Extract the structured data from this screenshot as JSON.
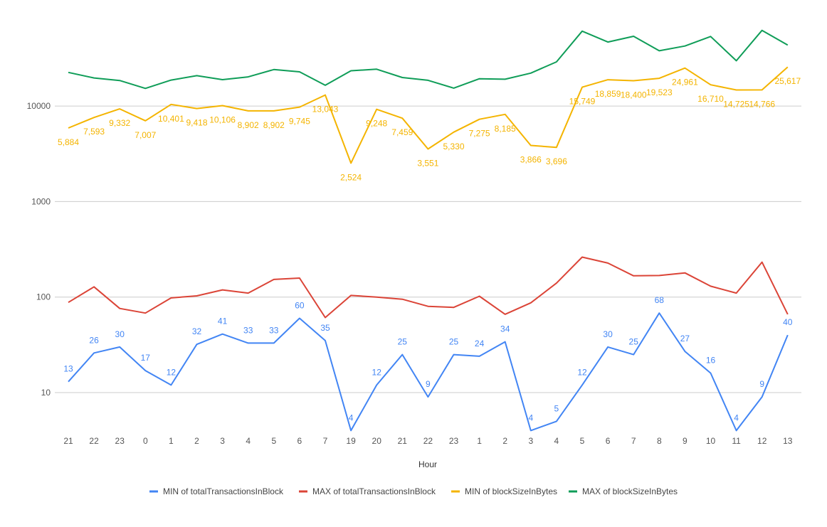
{
  "chart_data": {
    "type": "line",
    "title": "",
    "xlabel": "Hour",
    "ylabel": "",
    "y_scale": "log",
    "ylim": [
      4,
      70000
    ],
    "y_ticks": [
      "10",
      "100",
      "1000",
      "10000"
    ],
    "grid": true,
    "legend_position": "bottom",
    "categories": [
      "21",
      "22",
      "23",
      "0",
      "1",
      "2",
      "3",
      "4",
      "5",
      "6",
      "7",
      "19",
      "20",
      "21",
      "22",
      "23",
      "1",
      "2",
      "3",
      "4",
      "5",
      "6",
      "7",
      "8",
      "9",
      "10",
      "11",
      "12",
      "13"
    ],
    "series": [
      {
        "name": "MIN of totalTransactionsInBlock",
        "color": "#4285f4",
        "values": [
          13,
          26,
          30,
          17,
          12,
          32,
          41,
          33,
          33,
          60,
          35,
          4,
          12,
          25,
          9,
          25,
          24,
          34,
          4,
          5,
          12,
          30,
          25,
          68,
          27,
          16,
          4,
          9,
          40
        ],
        "data_labels": [
          "13",
          "26",
          "30",
          "17",
          "12",
          "32",
          "41",
          "33",
          "33",
          "60",
          "35",
          "4",
          "12",
          "25",
          "9",
          "25",
          "24",
          "34",
          "4",
          "5",
          "12",
          "30",
          "25",
          "68",
          "27",
          "16",
          "4",
          "9",
          "40"
        ]
      },
      {
        "name": "MAX of totalTransactionsInBlock",
        "color": "#db4437",
        "values": [
          88,
          128,
          76,
          68,
          98,
          103,
          119,
          110,
          153,
          158,
          61,
          104,
          100,
          95,
          80,
          78,
          102,
          66,
          87,
          140,
          262,
          227,
          167,
          168,
          179,
          130,
          110,
          232,
          66
        ]
      },
      {
        "name": "MIN of blockSizeInBytes",
        "color": "#f4b400",
        "values": [
          5884,
          7593,
          9332,
          7007,
          10401,
          9418,
          10106,
          8902,
          8902,
          9745,
          13043,
          2524,
          9248,
          7459,
          3551,
          5330,
          7275,
          8185,
          3866,
          3696,
          15749,
          18859,
          18400,
          19523,
          24961,
          16710,
          14725,
          14766,
          25617
        ],
        "data_labels": [
          "5,884",
          "7,593",
          "9,332",
          "7,007",
          "10,401",
          "9,418",
          "10,106",
          "8,902",
          "8,902",
          "9,745",
          "13,043",
          "2,524",
          "9,248",
          "7,459",
          "3,551",
          "5,330",
          "7,275",
          "8,185",
          "3,866",
          "3,696",
          "15,749",
          "18,859",
          "18,400",
          "19,523",
          "24,961",
          "16,710",
          "14,725",
          "14,766",
          "25,617"
        ]
      },
      {
        "name": "MAX of blockSizeInBytes",
        "color": "#0f9d58",
        "values": [
          22500,
          19700,
          18500,
          15300,
          18700,
          20800,
          18900,
          20200,
          24100,
          22800,
          16500,
          23400,
          24300,
          19900,
          18600,
          15400,
          19300,
          19100,
          22100,
          29000,
          60800,
          46800,
          53800,
          37900,
          42500,
          53500,
          29800,
          62000,
          43500
        ]
      }
    ]
  }
}
